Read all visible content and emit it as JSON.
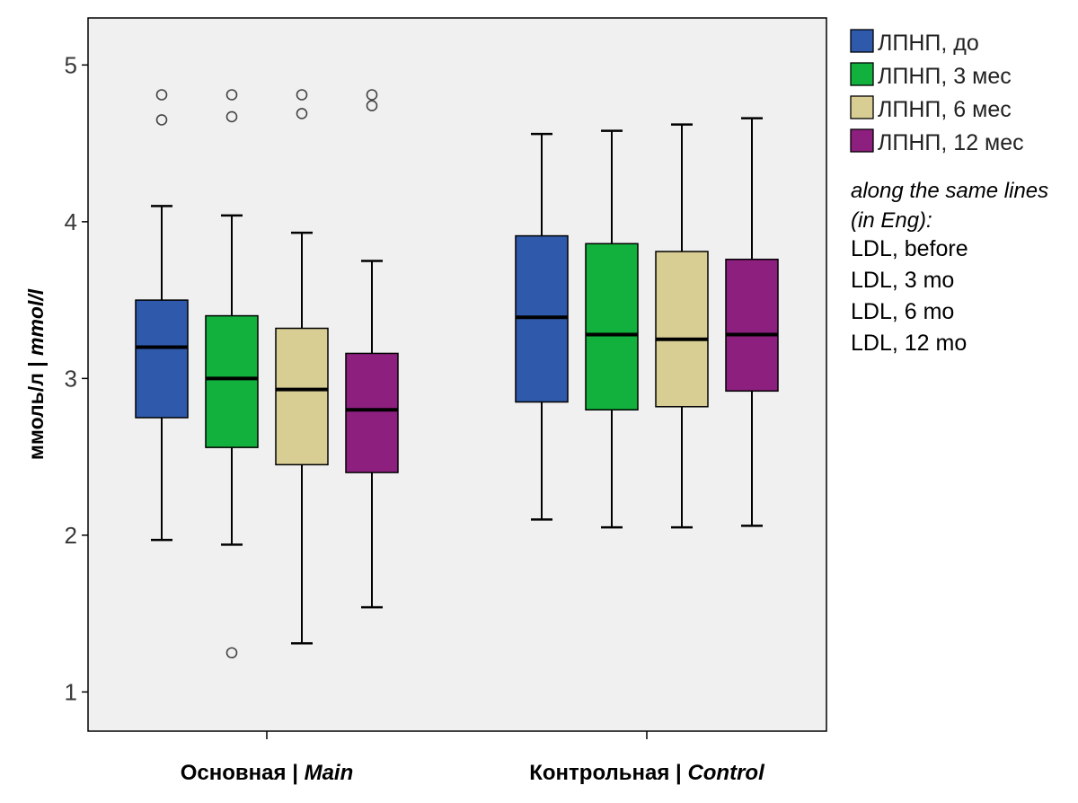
{
  "chart_data": {
    "type": "boxplot",
    "ylabel_ru": "ммоль/л | ",
    "ylabel_en": "mmol/l",
    "ylim": [
      0.75,
      5.3
    ],
    "yticks": [
      "1",
      "2",
      "3",
      "4",
      "5"
    ],
    "grid": false,
    "legend_position": "right",
    "categories": [
      {
        "label_ru": "Основная | ",
        "label_en": "Main"
      },
      {
        "label_ru": "Контрольная | ",
        "label_en": "Control"
      }
    ],
    "series": [
      {
        "name": "ЛПНП, до",
        "color": "#2f5aab"
      },
      {
        "name": "ЛПНП, 3 мес",
        "color": "#12b03c"
      },
      {
        "name": "ЛПНП, 6 мес",
        "color": "#d8ce94"
      },
      {
        "name": "ЛПНП, 12 мес",
        "color": "#8d1f7e"
      }
    ],
    "boxes": [
      [
        {
          "whisker_low": 1.97,
          "q1": 2.75,
          "median": 3.2,
          "q3": 3.5,
          "whisker_high": 4.1,
          "outliers": [
            4.65,
            4.81
          ]
        },
        {
          "whisker_low": 1.94,
          "q1": 2.56,
          "median": 3.0,
          "q3": 3.4,
          "whisker_high": 4.04,
          "outliers": [
            1.25,
            4.67,
            4.81
          ]
        },
        {
          "whisker_low": 1.31,
          "q1": 2.45,
          "median": 2.93,
          "q3": 3.32,
          "whisker_high": 3.93,
          "outliers": [
            4.69,
            4.81
          ]
        },
        {
          "whisker_low": 1.54,
          "q1": 2.4,
          "median": 2.8,
          "q3": 3.16,
          "whisker_high": 3.75,
          "outliers": [
            4.74,
            4.81
          ]
        }
      ],
      [
        {
          "whisker_low": 2.1,
          "q1": 2.85,
          "median": 3.39,
          "q3": 3.91,
          "whisker_high": 4.56,
          "outliers": []
        },
        {
          "whisker_low": 2.05,
          "q1": 2.8,
          "median": 3.28,
          "q3": 3.86,
          "whisker_high": 4.58,
          "outliers": []
        },
        {
          "whisker_low": 2.05,
          "q1": 2.82,
          "median": 3.25,
          "q3": 3.81,
          "whisker_high": 4.62,
          "outliers": []
        },
        {
          "whisker_low": 2.06,
          "q1": 2.92,
          "median": 3.28,
          "q3": 3.76,
          "whisker_high": 4.66,
          "outliers": []
        }
      ]
    ],
    "note": {
      "heading_lines": [
        "along the same lines",
        "(in Eng):"
      ],
      "lines": [
        "LDL, before",
        "LDL, 3 mo",
        "LDL, 6 mo",
        "LDL, 12 mo"
      ]
    }
  }
}
